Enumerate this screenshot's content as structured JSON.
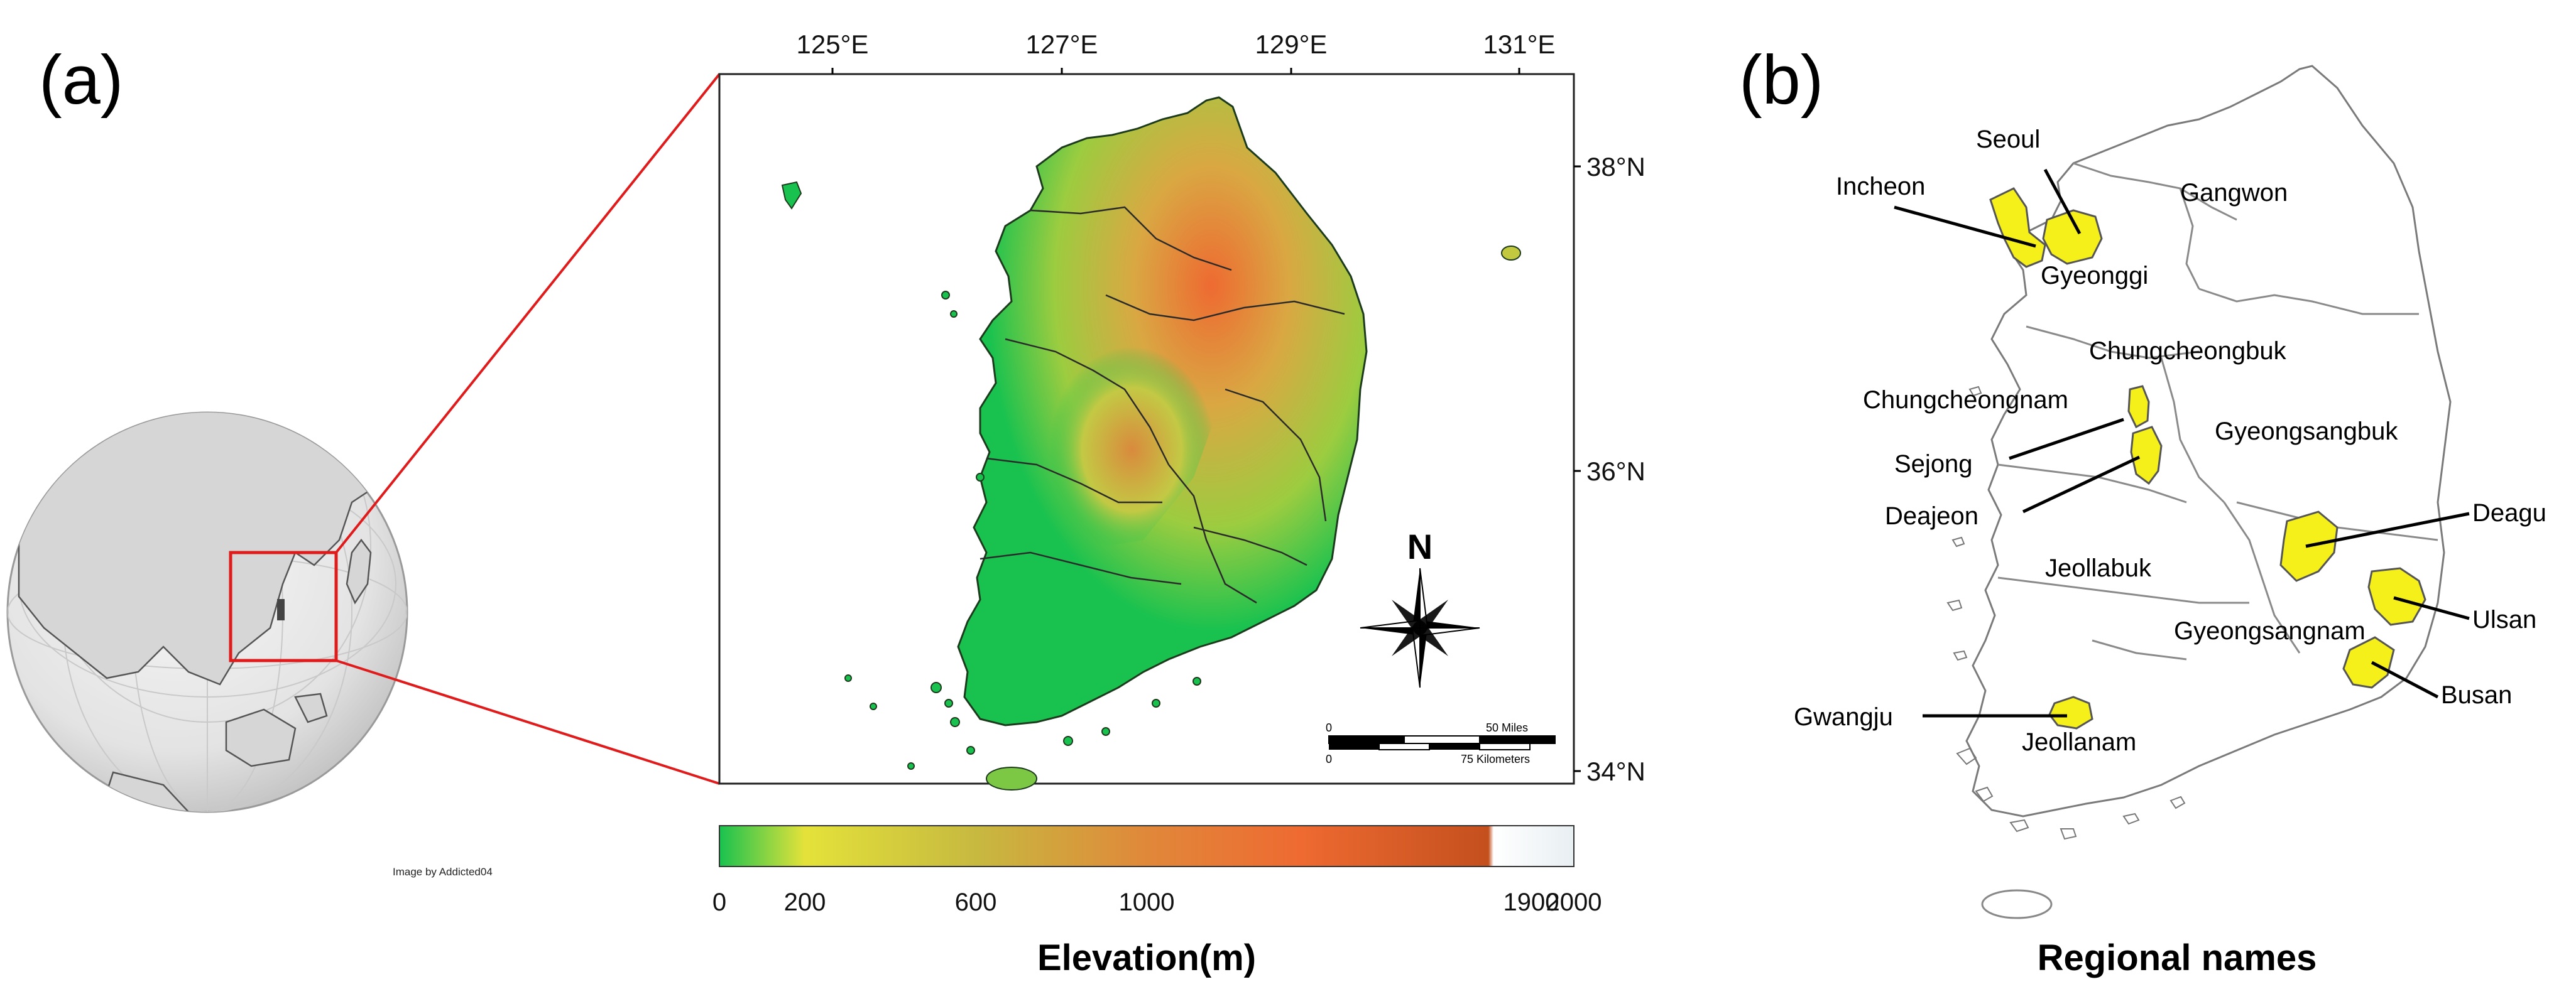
{
  "panel_a": {
    "label": "(a)",
    "globe_credit": "Image by Addicted04",
    "lon_ticks": [
      "125°E",
      "127°E",
      "129°E",
      "131°E"
    ],
    "lat_ticks": [
      "38°N",
      "36°N",
      "34°N"
    ],
    "north_label": "N",
    "scale_miles": "50 Miles",
    "scale_km": "75 Kilometers",
    "scale_zero_1": "0",
    "scale_zero_2": "0",
    "colorbar_title": "Elevation(m)",
    "colorbar_ticks": [
      "0",
      "200",
      "600",
      "1000",
      "1900",
      "2000"
    ],
    "colorbar_stop_values": [
      0,
      200,
      600,
      1000,
      1900,
      2000
    ],
    "colors": {
      "lowland": "#19c24f",
      "mid": "#e4e23a",
      "high": "#ee6a31",
      "peak": "#c4501e",
      "top": "#f4f8fa",
      "zoom_box": "#e01b1b"
    }
  },
  "panel_b": {
    "label": "(b)",
    "title": "Regional names",
    "highlight_color": "#f6f01a",
    "regions": [
      "Gangwon",
      "Gyeonggi",
      "Chungcheongbuk",
      "Chungcheongnam",
      "Gyeongsangbuk",
      "Jeollabuk",
      "Gyeongsangnam",
      "Jeollanam"
    ],
    "cities": [
      "Seoul",
      "Incheon",
      "Sejong",
      "Deajeon",
      "Deagu",
      "Ulsan",
      "Busan",
      "Gwangju"
    ]
  }
}
